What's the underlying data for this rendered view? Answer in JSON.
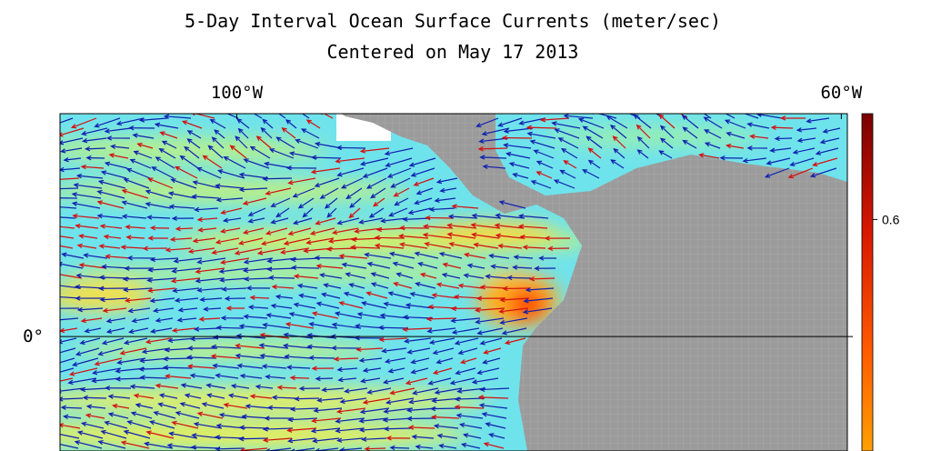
{
  "map": {
    "title": "5-Day Interval Ocean Surface Currents (meter/sec)",
    "subtitle": "Centered on May 17 2013",
    "lonlim": [
      -111.7,
      -59.6
    ],
    "latlim": [
      -7.6,
      14.8
    ],
    "lon_ticks": [
      {
        "value": -100,
        "label": "100°W"
      },
      {
        "value": -60,
        "label": "60°W"
      }
    ],
    "lat_ticks": [
      {
        "value": 0,
        "label": "0°"
      }
    ],
    "colorbar": {
      "lim": [
        0.25,
        0.76
      ],
      "ticks": [
        0.6
      ]
    }
  }
}
